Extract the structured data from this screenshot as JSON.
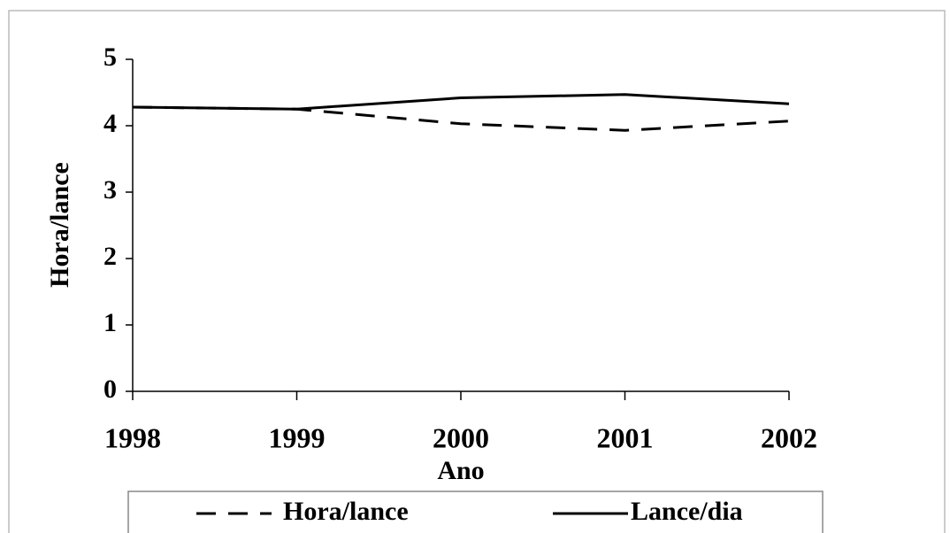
{
  "chart_data": {
    "type": "line",
    "x_label": "Ano",
    "y_label": "Hora/lance",
    "categories": [
      "1998",
      "1999",
      "2000",
      "2001",
      "2002"
    ],
    "series": [
      {
        "name": "Hora/lance",
        "color": "#000000",
        "style": "dashed",
        "values": [
          4.28,
          4.25,
          4.03,
          3.93,
          4.07
        ]
      },
      {
        "name": "Lance/dia",
        "color": "#000000",
        "style": "solid",
        "values": [
          4.28,
          4.25,
          4.42,
          4.47,
          4.33
        ]
      }
    ],
    "ylim": [
      0,
      5
    ],
    "yticks": [
      0,
      1,
      2,
      3,
      4,
      5
    ],
    "grid": false,
    "legend": "bottom"
  }
}
